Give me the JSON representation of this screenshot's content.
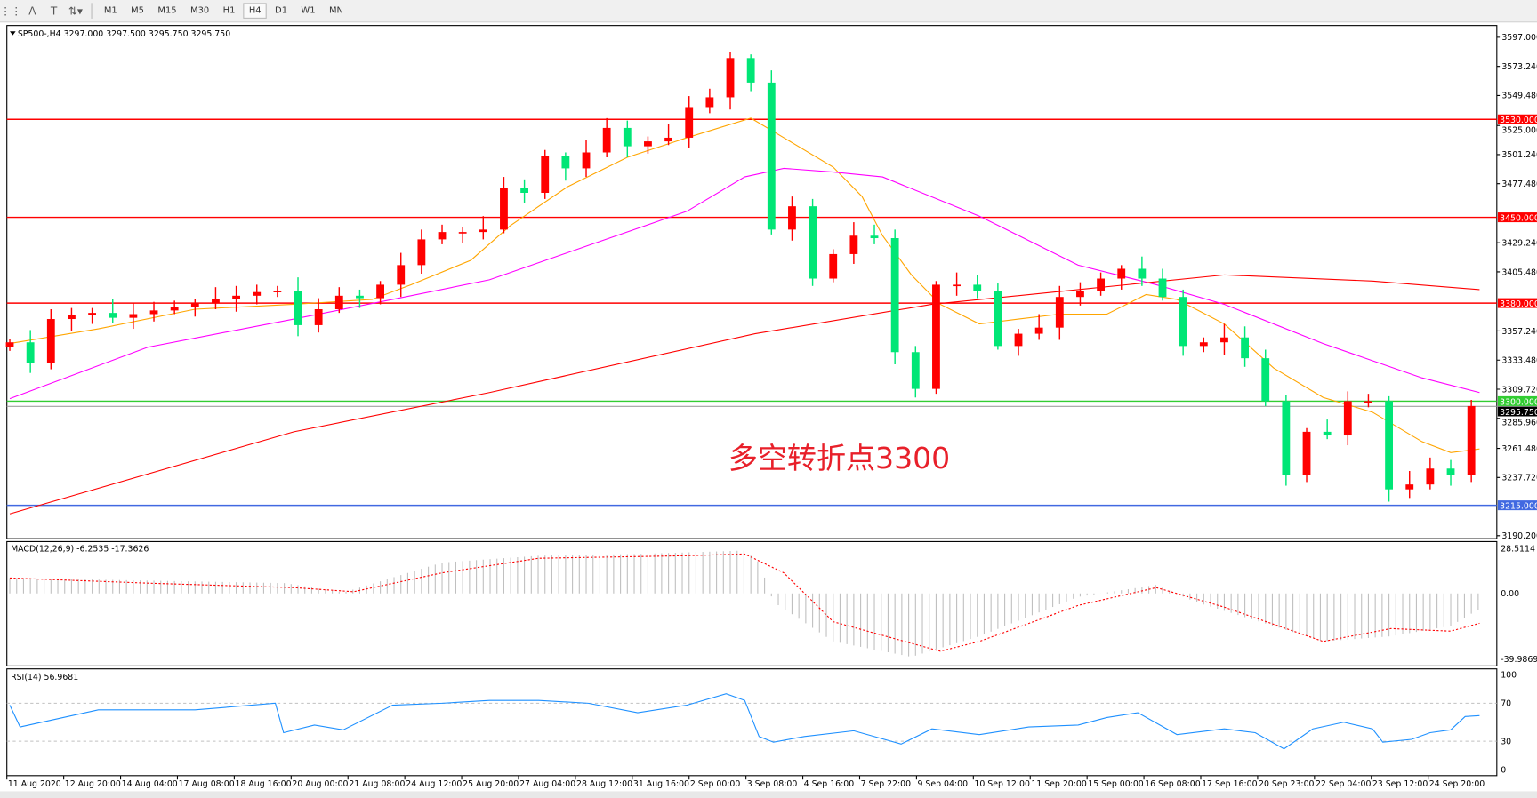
{
  "toolbar": {
    "icons": [
      "grid-icon",
      "text-icon",
      "text-label-icon",
      "arrows-icon"
    ],
    "timeframes": [
      "M1",
      "M5",
      "M15",
      "M30",
      "H1",
      "H4",
      "D1",
      "W1",
      "MN"
    ],
    "active_timeframe": "H4"
  },
  "chart_data": {
    "type": "candlestick",
    "symbol_header": "SP500-,H4  3297.000 3297.500 3295.750 3295.750",
    "ylim": [
      3190.2,
      3597.0
    ],
    "y_ticks": [
      "3597.000",
      "3573.240",
      "3549.480",
      "3525.000",
      "3501.240",
      "3477.480",
      "3429.240",
      "3405.480",
      "3357.240",
      "3333.480",
      "3309.720",
      "3285.960",
      "3261.480",
      "3237.720",
      "3190.200"
    ],
    "x_ticks": [
      "11 Aug 2020",
      "12 Aug 20:00",
      "14 Aug 04:00",
      "17 Aug 08:00",
      "18 Aug 16:00",
      "20 Aug 00:00",
      "21 Aug 08:00",
      "24 Aug 12:00",
      "25 Aug 20:00",
      "27 Aug 04:00",
      "28 Aug 12:00",
      "31 Aug 16:00",
      "2 Sep 00:00",
      "3 Sep 08:00",
      "4 Sep 16:00",
      "7 Sep 22:00",
      "9 Sep 04:00",
      "10 Sep 12:00",
      "11 Sep 20:00",
      "15 Sep 00:00",
      "16 Sep 08:00",
      "17 Sep 16:00",
      "20 Sep 23:00",
      "22 Sep 04:00",
      "23 Sep 12:00",
      "24 Sep 20:00"
    ],
    "up_color": "#ff0000",
    "down_color": "#00e676",
    "closes": [
      3348,
      3331,
      3367,
      3370,
      3372,
      3368,
      3371,
      3374,
      3377,
      3380,
      3383,
      3386,
      3389,
      3390,
      3362,
      3375,
      3386,
      3384,
      3395,
      3411,
      3432,
      3438,
      3438,
      3440,
      3474,
      3470,
      3500,
      3490,
      3503,
      3523,
      3508,
      3512,
      3515,
      3540,
      3548,
      3580,
      3560,
      3440,
      3459,
      3400,
      3420,
      3435,
      3433,
      3340,
      3310,
      3395,
      3395,
      3390,
      3345,
      3355,
      3360,
      3385,
      3390,
      3400,
      3408,
      3400,
      3385,
      3345,
      3348,
      3352,
      3335,
      3300,
      3240,
      3275,
      3272,
      3300,
      3300,
      3228,
      3232,
      3245,
      3240,
      3296
    ],
    "moving_averages": [
      {
        "color": "#ffa500",
        "points": [
          [
            0,
            3347
          ],
          [
            4.3,
            3359
          ],
          [
            9,
            3375
          ],
          [
            13.8,
            3379
          ],
          [
            17.6,
            3383
          ],
          [
            19.5,
            3395
          ],
          [
            22.4,
            3415
          ],
          [
            24.3,
            3443
          ],
          [
            27.1,
            3475
          ],
          [
            30,
            3499
          ],
          [
            32.9,
            3515
          ],
          [
            36,
            3531
          ],
          [
            37.6,
            3515
          ],
          [
            40,
            3491
          ],
          [
            41.4,
            3467
          ],
          [
            42.4,
            3435
          ],
          [
            43.8,
            3403
          ],
          [
            45.2,
            3379
          ],
          [
            47.1,
            3363
          ],
          [
            49,
            3367
          ],
          [
            51,
            3371
          ],
          [
            53.3,
            3371
          ],
          [
            55.2,
            3387
          ],
          [
            56.7,
            3383
          ],
          [
            59,
            3363
          ],
          [
            61.4,
            3327
          ],
          [
            63.8,
            3303
          ],
          [
            66.2,
            3291
          ],
          [
            68.6,
            3267
          ],
          [
            70,
            3258
          ],
          [
            71.4,
            3261
          ]
        ]
      },
      {
        "color": "#ff00ff",
        "points": [
          [
            0,
            3302
          ],
          [
            6.7,
            3344
          ],
          [
            13.8,
            3367
          ],
          [
            18.6,
            3383
          ],
          [
            23.3,
            3399
          ],
          [
            28.1,
            3427
          ],
          [
            32.9,
            3455
          ],
          [
            35.7,
            3483
          ],
          [
            37.6,
            3490
          ],
          [
            40,
            3487
          ],
          [
            42.4,
            3483
          ],
          [
            47.1,
            3451
          ],
          [
            51.9,
            3411
          ],
          [
            55.7,
            3395
          ],
          [
            59,
            3379
          ],
          [
            63.8,
            3347
          ],
          [
            68.6,
            3319
          ],
          [
            71.4,
            3307
          ]
        ]
      },
      {
        "color": "#ff0000",
        "points": [
          [
            0,
            3208
          ],
          [
            13.8,
            3275
          ],
          [
            23.3,
            3307
          ],
          [
            36.2,
            3355
          ],
          [
            44.8,
            3379
          ],
          [
            51.9,
            3391
          ],
          [
            59,
            3403
          ],
          [
            66.2,
            3398
          ],
          [
            71.4,
            3391
          ]
        ]
      }
    ],
    "levels": [
      {
        "price": 3530,
        "label": "3530.000",
        "color": "#ff0000"
      },
      {
        "price": 3450,
        "label": "3450.000",
        "color": "#ff0000"
      },
      {
        "price": 3380,
        "label": "3380.000",
        "color": "#ff0000"
      },
      {
        "price": 3300,
        "label": "3300.000",
        "color": "#32cd32"
      },
      {
        "price": 3215,
        "label": "3215.000",
        "color": "#4169e1"
      }
    ],
    "current_price": {
      "price": 3295.75,
      "label": "3295.750",
      "color": "#000000"
    },
    "annotation": "多空转折点3300",
    "annotation_color": "#e8202a",
    "macd": {
      "label": "MACD(12,26,9) -6.2535 -17.3626",
      "ylim": [
        -39.9869,
        28.5114
      ],
      "y_ticks": [
        "28.5114",
        "0.00",
        "-39.9869"
      ],
      "histogram": [
        [
          0,
          9
        ],
        [
          13.4,
          6
        ],
        [
          16.2,
          0.5
        ],
        [
          21,
          18
        ],
        [
          25.7,
          22
        ],
        [
          30.5,
          23
        ],
        [
          35.7,
          25
        ],
        [
          36.4,
          18
        ],
        [
          37.1,
          -5
        ],
        [
          40,
          -28
        ],
        [
          43.8,
          -37
        ],
        [
          47.1,
          -25
        ],
        [
          51.9,
          -2
        ],
        [
          55.7,
          5
        ],
        [
          57.6,
          -5
        ],
        [
          61.4,
          -19
        ],
        [
          63.8,
          -28
        ],
        [
          67.1,
          -25
        ],
        [
          70,
          -19
        ],
        [
          71.4,
          -9
        ]
      ],
      "signal": [
        [
          0,
          9
        ],
        [
          6.7,
          6
        ],
        [
          13.8,
          3.4
        ],
        [
          16.7,
          1
        ],
        [
          21,
          12
        ],
        [
          25.7,
          20.5
        ],
        [
          32.9,
          22
        ],
        [
          35.7,
          23
        ],
        [
          37.6,
          12
        ],
        [
          40,
          -16.5
        ],
        [
          45.2,
          -33.7
        ],
        [
          47.1,
          -28
        ],
        [
          51.9,
          -7
        ],
        [
          55.7,
          3.4
        ],
        [
          59,
          -8
        ],
        [
          63.8,
          -28
        ],
        [
          67.1,
          -20.5
        ],
        [
          70,
          -22
        ],
        [
          71.4,
          -17.4
        ]
      ]
    },
    "rsi": {
      "label": "RSI(14) 56.9681",
      "ylim": [
        0,
        100
      ],
      "y_ticks": [
        "100",
        "70",
        "30",
        "0"
      ],
      "levels": [
        70,
        30
      ],
      "points": [
        [
          0,
          68
        ],
        [
          0.5,
          45
        ],
        [
          4.3,
          63
        ],
        [
          9,
          63
        ],
        [
          12.9,
          70
        ],
        [
          13.3,
          39
        ],
        [
          14.8,
          47
        ],
        [
          16.2,
          42
        ],
        [
          18.6,
          68
        ],
        [
          21,
          70
        ],
        [
          23.3,
          73
        ],
        [
          25.7,
          73
        ],
        [
          28.1,
          70
        ],
        [
          30.5,
          60
        ],
        [
          32.9,
          68
        ],
        [
          34.8,
          80
        ],
        [
          35.7,
          73
        ],
        [
          36.4,
          35
        ],
        [
          37.1,
          29
        ],
        [
          38.6,
          35
        ],
        [
          41,
          41
        ],
        [
          43.3,
          27
        ],
        [
          44.8,
          43
        ],
        [
          47.1,
          37
        ],
        [
          49.5,
          45
        ],
        [
          51.9,
          47
        ],
        [
          53.3,
          55
        ],
        [
          54.8,
          60
        ],
        [
          56.7,
          37
        ],
        [
          59,
          43
        ],
        [
          60.5,
          39
        ],
        [
          61.9,
          22
        ],
        [
          63.3,
          43
        ],
        [
          64.8,
          50
        ],
        [
          66.2,
          43
        ],
        [
          66.7,
          29
        ],
        [
          68.1,
          32
        ],
        [
          69,
          39
        ],
        [
          70,
          42
        ],
        [
          70.7,
          56
        ],
        [
          71.4,
          57
        ]
      ]
    }
  }
}
